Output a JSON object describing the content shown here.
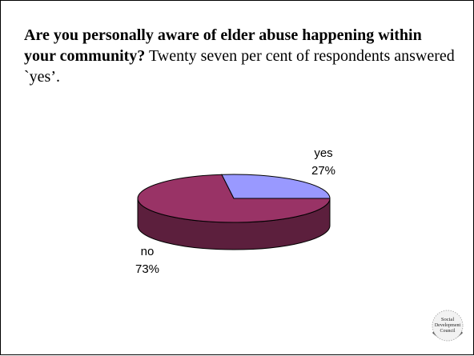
{
  "slide": {
    "question_bold": "Are you personally aware of elder abuse happening within your community?",
    "question_rest": " Twenty seven per cent of respondents answered `yes’."
  },
  "chart_data": {
    "type": "pie",
    "style": "3d",
    "title": "",
    "categories": [
      "yes",
      "no"
    ],
    "values": [
      27,
      73
    ],
    "labels": [
      "27%",
      "73%"
    ],
    "colors": {
      "yes": "#9999ff",
      "yes_side": "#5c5c99",
      "no": "#993366",
      "no_side": "#5c1f3d",
      "outline": "#000000"
    },
    "legend": "none"
  },
  "logo": {
    "line1": "Social",
    "line2": "Development",
    "line3": "Council",
    "icon": "social-development-council-seal"
  }
}
